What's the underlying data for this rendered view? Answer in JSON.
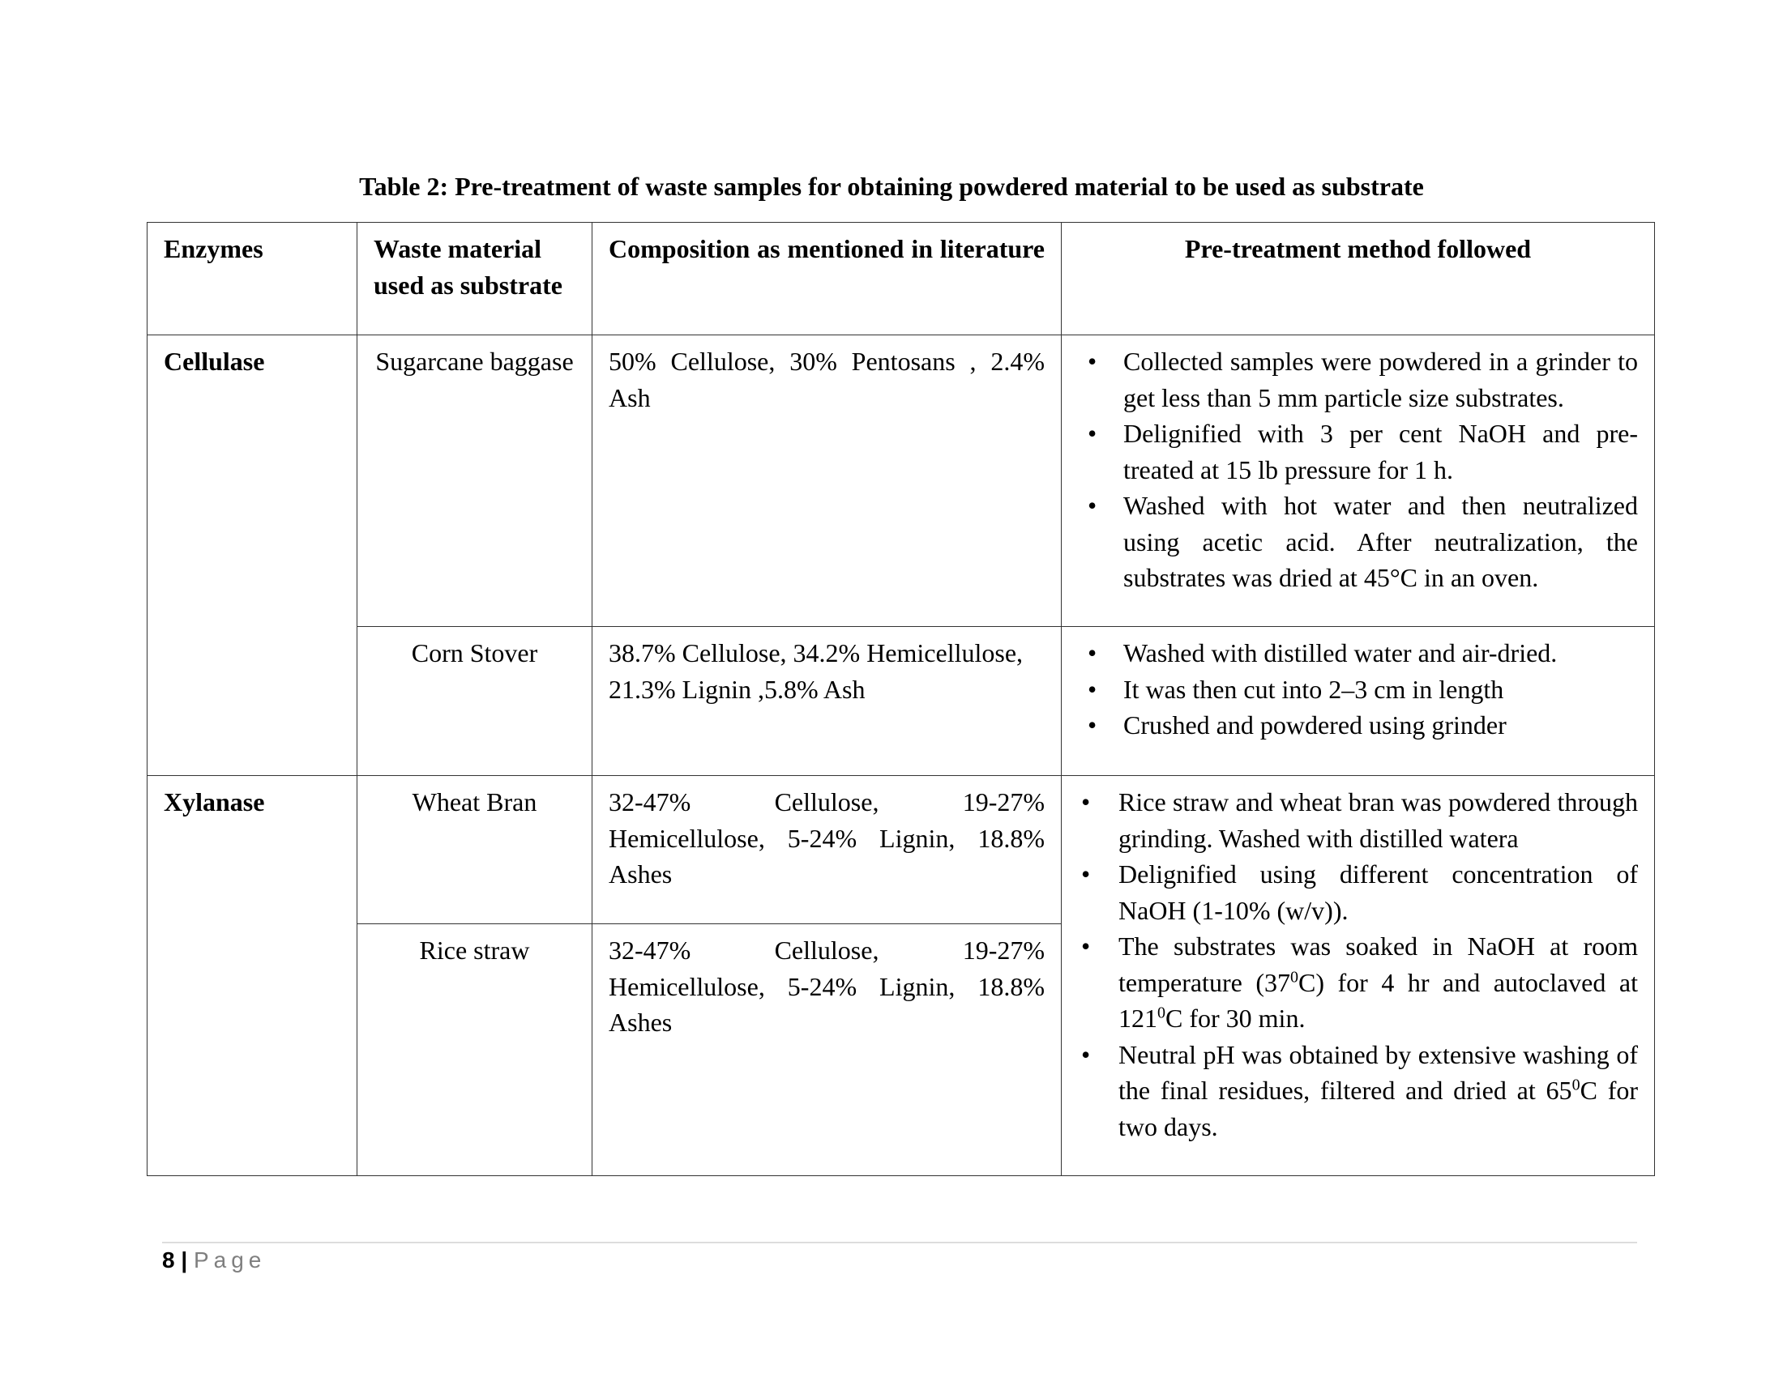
{
  "title": "Table 2:  Pre-treatment of waste samples for obtaining powdered material to be used as substrate",
  "headers": [
    "Enzymes",
    "Waste material used as substrate",
    "Composition as mentioned in literature",
    "Pre-treatment method followed"
  ],
  "rows": {
    "cellulase": {
      "enzyme": "Cellulase",
      "sugarcane": {
        "material": "Sugarcane baggase",
        "composition": "50% Cellulose, 30% Pentosans , 2.4% Ash",
        "methods": [
          "Collected samples were powdered in a grinder to get less than 5 mm particle size substrates.",
          "Delignified with 3 per cent NaOH and pre-treated at 15 lb pressure for 1 h.",
          "Washed  with hot water and then neutralized using acetic acid. After neutralization, the substrates was dried at 45°C in an oven."
        ]
      },
      "corn": {
        "material": "Corn Stover",
        "composition": "38.7% Cellulose, 34.2% Hemicellulose, 21.3% Lignin ,5.8% Ash",
        "methods": [
          "Washed with distilled water and air-dried.",
          "It was then cut into 2–3 cm in length",
          "Crushed and powdered using grinder"
        ]
      }
    },
    "xylanase": {
      "enzyme": "Xylanase",
      "wheat": {
        "material": "Wheat Bran",
        "composition": "32-47% Cellulose, 19-27% Hemicellulose, 5-24% Lignin, 18.8% Ashes"
      },
      "rice": {
        "material": "Rice straw",
        "composition": "32-47% Cellulose, 19-27% Hemicellulose, 5-24% Lignin, 18.8% Ashes"
      },
      "methods": {
        "m1": "Rice straw and wheat bran was powdered through grinding. Washed with distilled watera",
        "m2": "Delignified using different concentration of NaOH  (1-10% (w/v)).",
        "m3a": "The substrates was soaked  in NaOH at room temperature (37",
        "m3b": "C) for 4 hr and autoclaved at 121",
        "m3c": "C for 30 min.",
        "m4a": "Neutral pH was obtained by extensive washing of the final residues, filtered and dried at 65",
        "m4b": "C for two days.",
        "sup": "0"
      }
    }
  },
  "footer": {
    "page_number": "8",
    "separator": "|",
    "page_label": "Page"
  }
}
